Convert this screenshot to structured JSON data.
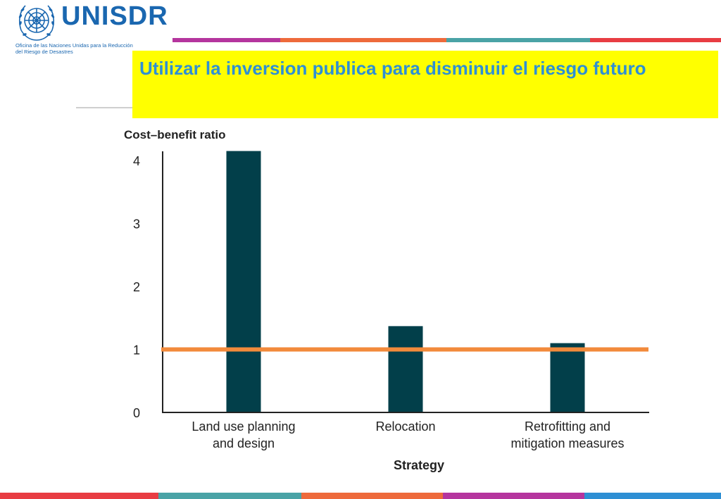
{
  "header": {
    "logo_text": "UNISDR",
    "logo_subtitle_line1": "Oficina de las Naciones Unidas para la Reducción",
    "logo_subtitle_line2": "del Riesgo de Desastres",
    "logo_icon": "un-emblem-icon",
    "title": "Utilizar la inversion publica para disminuir el riesgo futuro"
  },
  "colors": {
    "brand_blue": "#1a67b0",
    "title_blue": "#2e8fd4",
    "title_bg": "#ffff00",
    "bar": "#023f4a",
    "threshold": "#f28a3b",
    "stripe_top": [
      "#b5359e",
      "#ee6a3b",
      "#4aa3a6",
      "#e83d43"
    ],
    "stripe_bottom": [
      "#e83d43",
      "#4aa3a6",
      "#ee6a3b",
      "#b5359e",
      "#2e8fd4"
    ]
  },
  "chart_data": {
    "type": "bar",
    "ylabel": "Cost–benefit ratio",
    "xlabel": "Strategy",
    "categories": [
      [
        "Land use planning",
        "and design"
      ],
      [
        "Relocation"
      ],
      [
        "Retrofitting and",
        "mitigation measures"
      ]
    ],
    "values": [
      4.15,
      1.37,
      1.1
    ],
    "ylim": [
      0,
      4.2
    ],
    "yticks": [
      0,
      1,
      2,
      3,
      4
    ],
    "reference_line": 1,
    "grid": false
  }
}
